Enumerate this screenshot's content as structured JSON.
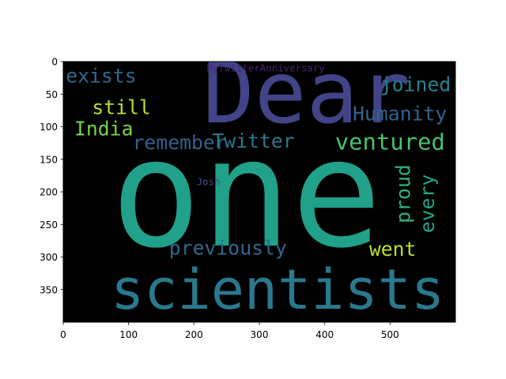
{
  "chart_data": {
    "type": "wordcloud",
    "background": "#000000",
    "xlim": [
      0,
      600
    ],
    "ylim": [
      400,
      0
    ],
    "x_ticks": [
      0,
      100,
      200,
      300,
      400,
      500
    ],
    "y_ticks": [
      0,
      50,
      100,
      150,
      200,
      250,
      300,
      350
    ],
    "grid": false,
    "words": [
      {
        "text": "one",
        "x": 280,
        "y": 203,
        "size": 230,
        "color": "#21a08a",
        "rotate": 0
      },
      {
        "text": "Dear",
        "x": 372,
        "y": 48,
        "size": 132,
        "color": "#414487",
        "rotate": 0
      },
      {
        "text": "scientists",
        "x": 328,
        "y": 350,
        "size": 85,
        "color": "#2a788e",
        "rotate": 0
      },
      {
        "text": "ventured",
        "x": 500,
        "y": 123,
        "size": 35,
        "color": "#48c16e",
        "rotate": 0
      },
      {
        "text": "exists",
        "x": 58,
        "y": 22,
        "size": 30,
        "color": "#31688e",
        "rotate": 0
      },
      {
        "text": "joined",
        "x": 539,
        "y": 35,
        "size": 30,
        "color": "#26828e",
        "rotate": 0
      },
      {
        "text": "still",
        "x": 89,
        "y": 70,
        "size": 30,
        "color": "#bddf26",
        "rotate": 0
      },
      {
        "text": "Humanity",
        "x": 515,
        "y": 80,
        "size": 30,
        "color": "#33638d",
        "rotate": 0
      },
      {
        "text": "India",
        "x": 62,
        "y": 103,
        "size": 30,
        "color": "#7ad151",
        "rotate": 0
      },
      {
        "text": "remember",
        "x": 178,
        "y": 124,
        "size": 30,
        "color": "#355f8d",
        "rotate": 0
      },
      {
        "text": "Twitter",
        "x": 291,
        "y": 122,
        "size": 30,
        "color": "#2a788e",
        "rotate": 0
      },
      {
        "text": "proud",
        "x": 520,
        "y": 203,
        "size": 30,
        "color": "#2db27d",
        "rotate": -90
      },
      {
        "text": "every",
        "x": 557,
        "y": 218,
        "size": 30,
        "color": "#20a486",
        "rotate": -90
      },
      {
        "text": "previously",
        "x": 252,
        "y": 286,
        "size": 30,
        "color": "#31688e",
        "rotate": 0
      },
      {
        "text": "went",
        "x": 504,
        "y": 288,
        "size": 30,
        "color": "#bddf26",
        "rotate": 0
      },
      {
        "text": "MyTwitterAnniversary",
        "x": 310,
        "y": 10,
        "size": 15,
        "color": "#482475",
        "rotate": 0
      },
      {
        "text": "Josh",
        "x": 222,
        "y": 185,
        "size": 15,
        "color": "#3e4989",
        "rotate": 0
      }
    ]
  }
}
